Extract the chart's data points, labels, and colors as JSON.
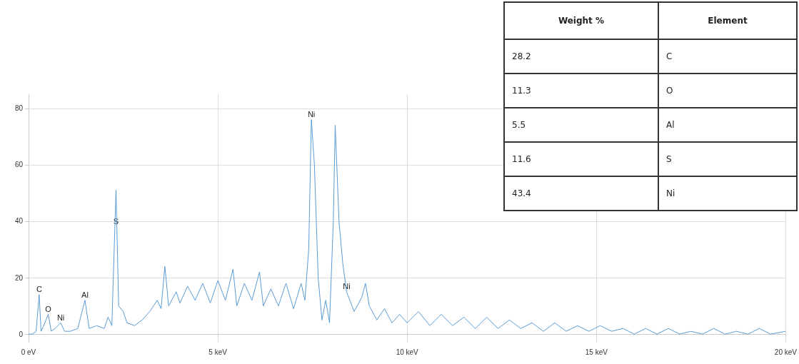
{
  "chart_data": [
    {
      "type": "line",
      "xlim": [
        0,
        20
      ],
      "ylim": [
        -3,
        85
      ],
      "xticks": [
        {
          "value": 0,
          "label": "0 eV"
        },
        {
          "value": 5,
          "label": "5 keV"
        },
        {
          "value": 10,
          "label": "10 keV"
        },
        {
          "value": 15,
          "label": "15 keV"
        },
        {
          "value": 20,
          "label": "20 keV"
        }
      ],
      "yticks": [
        0,
        20,
        40,
        60,
        80
      ],
      "grid": true,
      "marker": "none",
      "line_style": "solid",
      "annotations": [
        {
          "text": "C",
          "x": 0.28,
          "y": 14
        },
        {
          "text": "O",
          "x": 0.52,
          "y": 7
        },
        {
          "text": "Ni",
          "x": 0.85,
          "y": 4
        },
        {
          "text": "Al",
          "x": 1.49,
          "y": 12
        },
        {
          "text": "S",
          "x": 2.31,
          "y": 38
        },
        {
          "text": "Ni",
          "x": 7.47,
          "y": 76
        },
        {
          "text": "Ni",
          "x": 8.4,
          "y": 15
        }
      ],
      "series": [
        {
          "color": "#5b9bd5",
          "x": [
            0,
            0.1,
            0.2,
            0.28,
            0.33,
            0.4,
            0.52,
            0.6,
            0.7,
            0.85,
            0.95,
            1.1,
            1.3,
            1.49,
            1.6,
            1.8,
            2.0,
            2.1,
            2.2,
            2.31,
            2.38,
            2.5,
            2.6,
            2.8,
            3.0,
            3.2,
            3.4,
            3.5,
            3.6,
            3.7,
            3.9,
            4.0,
            4.2,
            4.4,
            4.6,
            4.8,
            5.0,
            5.2,
            5.4,
            5.5,
            5.7,
            5.9,
            6.1,
            6.2,
            6.4,
            6.6,
            6.8,
            7.0,
            7.2,
            7.3,
            7.4,
            7.47,
            7.55,
            7.65,
            7.75,
            7.85,
            7.95,
            8.05,
            8.1,
            8.2,
            8.3,
            8.4,
            8.6,
            8.8,
            8.9,
            9.0,
            9.2,
            9.4,
            9.6,
            9.8,
            10.0,
            10.3,
            10.6,
            10.9,
            11.2,
            11.5,
            11.8,
            12.1,
            12.4,
            12.7,
            13.0,
            13.3,
            13.6,
            13.9,
            14.2,
            14.5,
            14.8,
            15.1,
            15.4,
            15.7,
            16.0,
            16.3,
            16.6,
            16.9,
            17.2,
            17.5,
            17.8,
            18.1,
            18.4,
            18.7,
            19.0,
            19.3,
            19.6,
            20.0
          ],
          "values": [
            0,
            0,
            1,
            14,
            1,
            3,
            7,
            1,
            2,
            4,
            1,
            1,
            2,
            12,
            2,
            3,
            2,
            6,
            3,
            51,
            10,
            8,
            4,
            3,
            5,
            8,
            12,
            9,
            24,
            10,
            15,
            11,
            17,
            12,
            18,
            11,
            19,
            12,
            23,
            10,
            18,
            12,
            22,
            10,
            16,
            10,
            18,
            9,
            18,
            12,
            30,
            76,
            60,
            20,
            5,
            12,
            4,
            40,
            74,
            40,
            25,
            15,
            8,
            13,
            18,
            10,
            5,
            9,
            4,
            7,
            4,
            8,
            3,
            7,
            3,
            6,
            2,
            6,
            2,
            5,
            2,
            4,
            1,
            4,
            1,
            3,
            1,
            3,
            1,
            2,
            0,
            2,
            0,
            2,
            0,
            1,
            0,
            2,
            0,
            1,
            0,
            2,
            0,
            1
          ]
        }
      ]
    },
    {
      "type": "other",
      "annotations": [
        "Weight %",
        "Element"
      ],
      "categories": [
        "C",
        "O",
        "Al",
        "S",
        "Ni"
      ],
      "values": [
        28.2,
        11.3,
        5.5,
        11.6,
        43.4
      ],
      "data_labels": true
    }
  ]
}
